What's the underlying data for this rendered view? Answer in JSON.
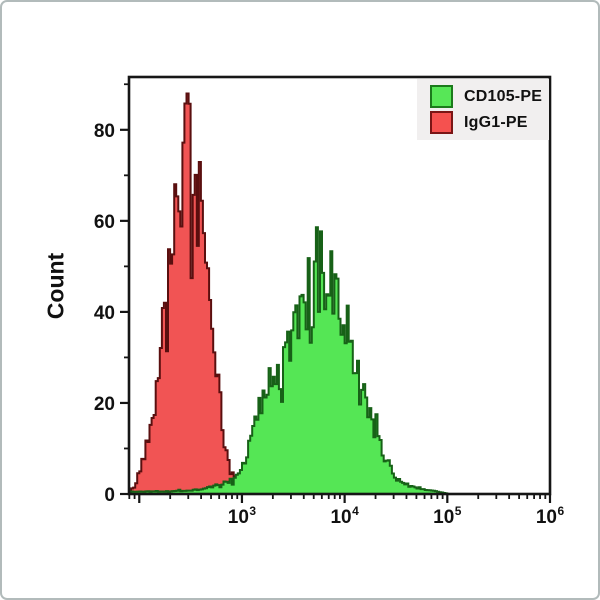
{
  "figure": {
    "background": "#ffffff",
    "border_color": "#b2bbbb"
  },
  "chart_data": {
    "type": "area",
    "subtype": "flow-cytometry-overlay-histogram",
    "title": "",
    "xlabel": "",
    "ylabel": "Count",
    "grid": false,
    "legend_position": "top-right-inside",
    "x_scale": "log10",
    "x_range_log10": [
      1.9,
      6.0
    ],
    "ylim": [
      0,
      91.6
    ],
    "y_axis": {
      "major_ticks": [
        0,
        20,
        40,
        60,
        80
      ],
      "minor_ticks": [
        10,
        30,
        50,
        70,
        90
      ]
    },
    "x_axis": {
      "tick_label_base": "10",
      "decade_ticks": [
        2,
        3,
        4,
        5,
        6
      ],
      "labeled_decades": [
        3,
        4,
        5,
        6
      ],
      "minor_ticks": "2-9 per decade, log spaced"
    },
    "bin_width_log10": 0.02,
    "series": [
      {
        "name": "IgG1-PE",
        "fill": "#f15454",
        "outline": "#5a0f0f",
        "seed": 42,
        "peak_x_log10": 2.47,
        "peak_count": 87,
        "envelope_log10_count": [
          [
            1.9,
            0.3
          ],
          [
            1.96,
            2
          ],
          [
            2.0,
            5
          ],
          [
            2.06,
            10
          ],
          [
            2.12,
            20
          ],
          [
            2.18,
            32
          ],
          [
            2.24,
            46
          ],
          [
            2.3,
            58
          ],
          [
            2.36,
            68
          ],
          [
            2.42,
            76
          ],
          [
            2.47,
            80
          ],
          [
            2.52,
            75
          ],
          [
            2.58,
            68
          ],
          [
            2.64,
            59
          ],
          [
            2.7,
            44
          ],
          [
            2.76,
            27
          ],
          [
            2.82,
            13
          ],
          [
            2.88,
            6
          ],
          [
            2.95,
            2.5
          ],
          [
            3.02,
            1.2
          ],
          [
            3.1,
            0.5
          ],
          [
            3.16,
            0
          ]
        ]
      },
      {
        "name": "CD105-PE",
        "fill": "#55e655",
        "outline": "#176117",
        "seed": 1337,
        "peak_x_log10": 3.76,
        "peak_count": 60,
        "envelope_log10_count": [
          [
            1.9,
            0.5
          ],
          [
            2.1,
            0.6
          ],
          [
            2.3,
            0.7
          ],
          [
            2.5,
            0.9
          ],
          [
            2.65,
            1.3
          ],
          [
            2.8,
            2.2
          ],
          [
            2.92,
            3.5
          ],
          [
            3.0,
            6
          ],
          [
            3.1,
            14
          ],
          [
            3.2,
            22
          ],
          [
            3.3,
            27
          ],
          [
            3.4,
            30
          ],
          [
            3.5,
            37
          ],
          [
            3.6,
            44
          ],
          [
            3.7,
            51
          ],
          [
            3.76,
            54
          ],
          [
            3.83,
            51
          ],
          [
            3.92,
            45
          ],
          [
            4.0,
            38
          ],
          [
            4.08,
            31
          ],
          [
            4.16,
            24
          ],
          [
            4.25,
            19
          ],
          [
            4.33,
            13
          ],
          [
            4.42,
            7
          ],
          [
            4.52,
            3.5
          ],
          [
            4.65,
            1.8
          ],
          [
            4.8,
            1
          ],
          [
            4.95,
            0.4
          ],
          [
            5.02,
            0
          ]
        ]
      }
    ]
  },
  "legend": {
    "background": "#f1efef",
    "items": [
      {
        "label": "CD105-PE",
        "color": "#57e757",
        "border": "#1b7a1b"
      },
      {
        "label": "IgG1-PE",
        "color": "#f5514f",
        "border": "#7a1515"
      }
    ]
  }
}
